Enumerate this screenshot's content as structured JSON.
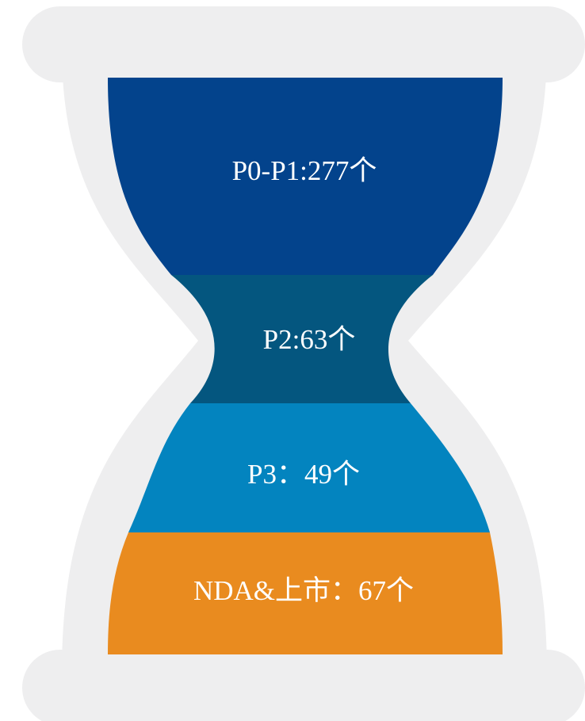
{
  "colors": {
    "frame": "#eeeeef",
    "stage1": "#03438c",
    "stage2": "#04567f",
    "stage3": "#0384bf",
    "stage4": "#e98b1f"
  },
  "stages": [
    {
      "label": "P0-P1:277个"
    },
    {
      "label": "P2:63个"
    },
    {
      "label": "P3：49个"
    },
    {
      "label": "NDA&上市：67个"
    }
  ]
}
